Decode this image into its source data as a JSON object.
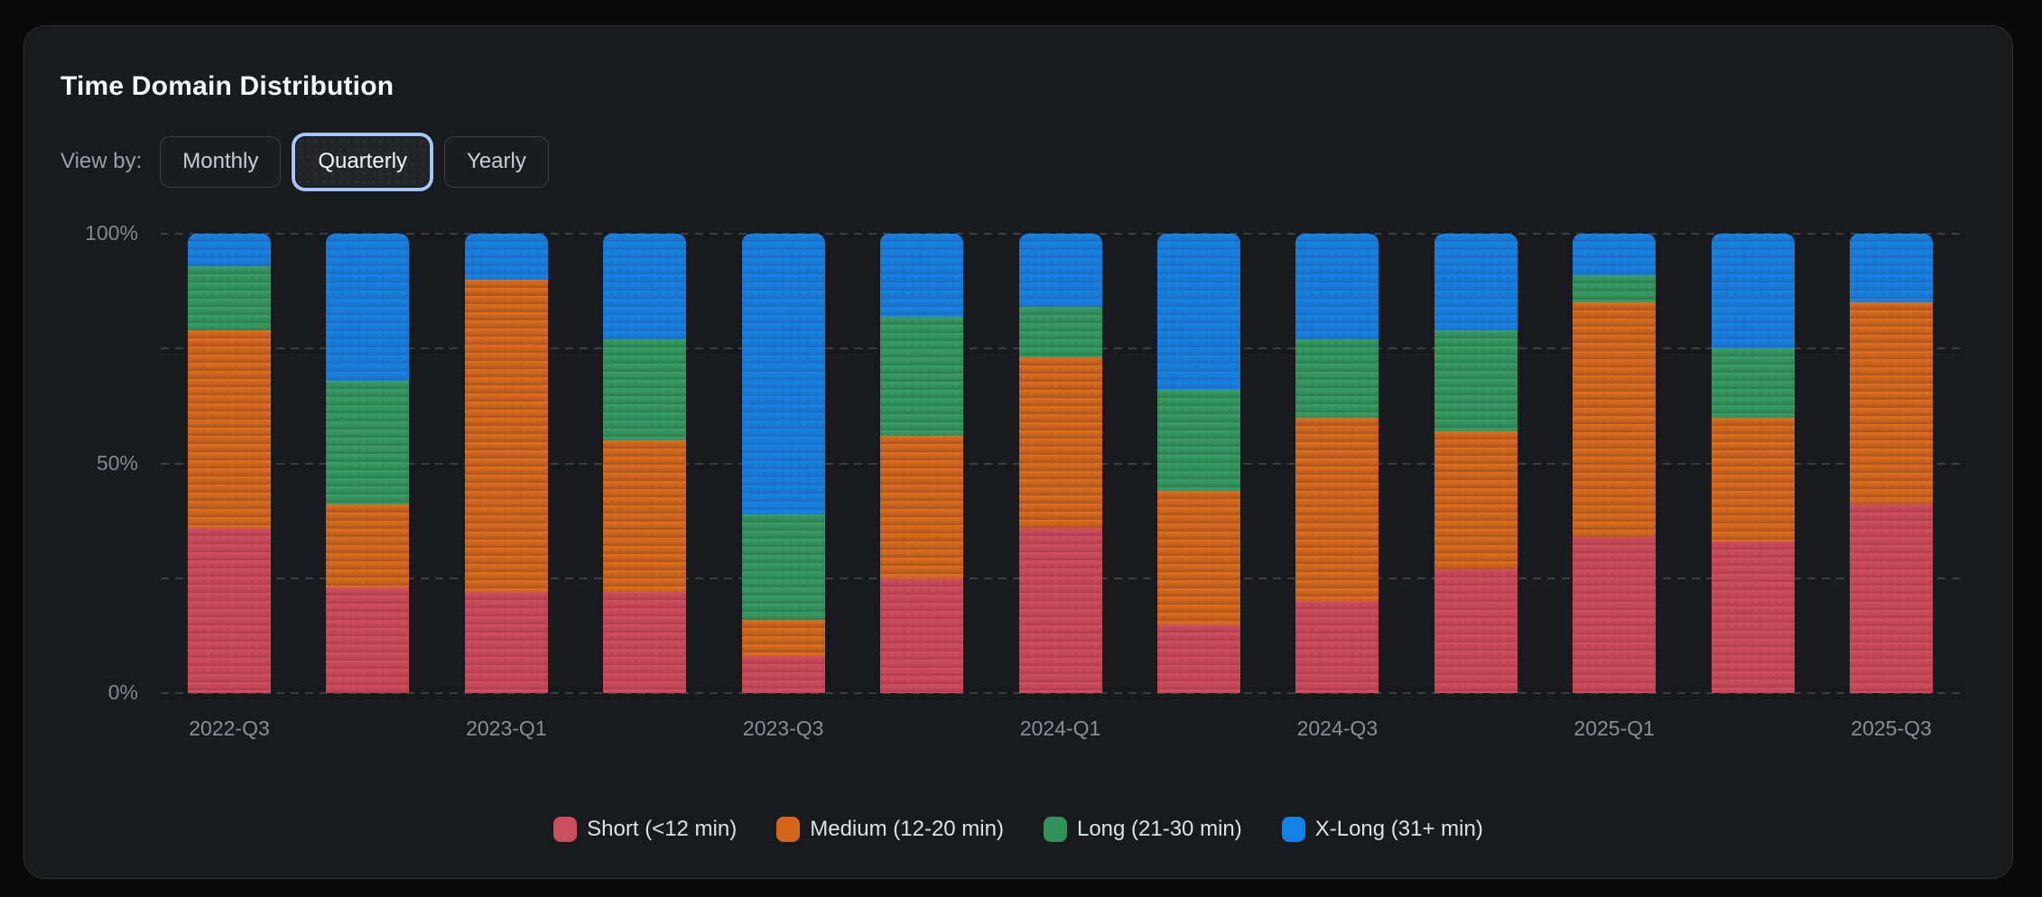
{
  "page": {
    "background": "#0a0a0b"
  },
  "card": {
    "background": "#191a1d",
    "border_color": "#2c2f34",
    "title": "Time Domain Distribution"
  },
  "controls": {
    "label": "View by:",
    "selected_ring_color": "#a3c5f8",
    "options": [
      {
        "label": "Monthly",
        "selected": false
      },
      {
        "label": "Quarterly",
        "selected": true
      },
      {
        "label": "Yearly",
        "selected": false
      }
    ]
  },
  "chart_data": {
    "type": "bar",
    "stacked": true,
    "normalized_percent": true,
    "title": "Time Domain Distribution",
    "xlabel": "",
    "ylabel": "",
    "ylim": [
      0,
      100
    ],
    "y_tick_labels_shown": [
      "0%",
      "50%",
      "100%"
    ],
    "gridlines_percent": [
      0,
      25,
      50,
      75,
      100
    ],
    "grid_style": "dashed",
    "legend_position": "bottom",
    "categories": [
      "2022-Q3",
      "2022-Q4",
      "2023-Q1",
      "2023-Q2",
      "2023-Q3",
      "2023-Q4",
      "2024-Q1",
      "2024-Q2",
      "2024-Q3",
      "2024-Q4",
      "2025-Q1",
      "2025-Q2",
      "2025-Q3"
    ],
    "x_tick_labels_shown": [
      "2022-Q3",
      "2023-Q1",
      "2023-Q3",
      "2024-Q1",
      "2024-Q3",
      "2025-Q1",
      "2025-Q3"
    ],
    "series": [
      {
        "name": "Short (<12 min)",
        "legend_color": "#cb4e5c",
        "gradient_top": "#d05062",
        "gradient_bottom": "#b23e4b",
        "values": [
          36,
          23,
          22,
          22,
          8,
          25,
          36,
          15,
          20,
          27,
          34,
          33,
          41
        ]
      },
      {
        "name": "Medium (12-20 min)",
        "legend_color": "#d4661c",
        "gradient_top": "#e36f1c",
        "gradient_bottom": "#ad5520",
        "values": [
          43,
          18,
          68,
          33,
          8,
          31,
          37,
          29,
          40,
          30,
          51,
          27,
          44
        ]
      },
      {
        "name": "Long (21-30 min)",
        "legend_color": "#33915b",
        "gradient_top": "#38a066",
        "gradient_bottom": "#2c7e50",
        "values": [
          14,
          27,
          0,
          22,
          23,
          26,
          11,
          22,
          17,
          22,
          6,
          15,
          0
        ]
      },
      {
        "name": "X-Long (31+ min)",
        "legend_color": "#1483e8",
        "gradient_top": "#1286ea",
        "gradient_bottom": "#1e6cc0",
        "values": [
          7,
          32,
          10,
          23,
          61,
          18,
          16,
          34,
          23,
          21,
          9,
          25,
          15
        ]
      }
    ]
  }
}
